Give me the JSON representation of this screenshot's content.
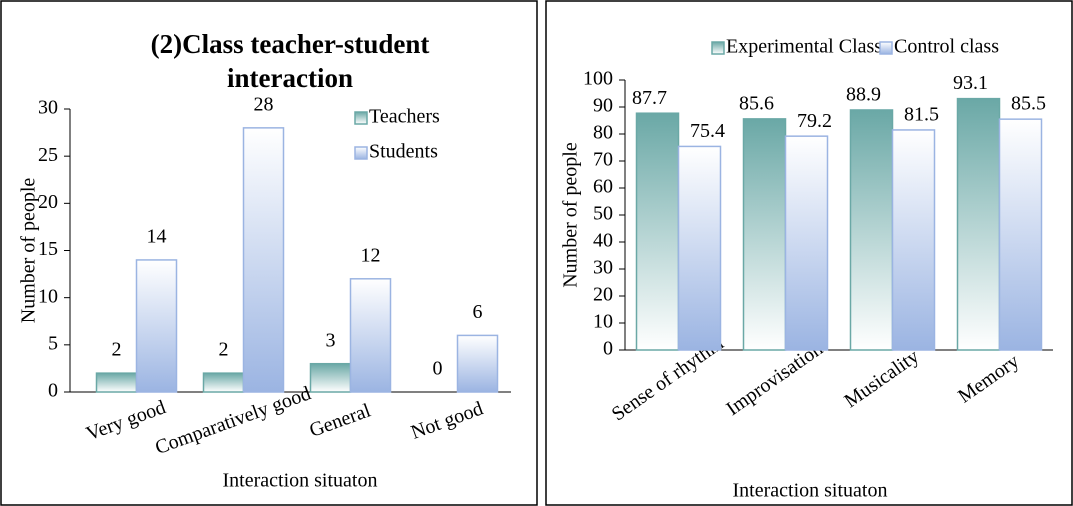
{
  "chart_data": [
    {
      "type": "bar",
      "title": "(2)Class teacher-student interaction",
      "y_label": "Number of people",
      "x_label": "Interaction situaton",
      "categories": [
        "Very good",
        "Comparatively good",
        "General",
        "Not good"
      ],
      "series": [
        {
          "name": "Teachers",
          "color": "#6aa8a6",
          "values": [
            2,
            2,
            3,
            0
          ]
        },
        {
          "name": "Students",
          "color": "#9bb4e2",
          "values": [
            14,
            28,
            12,
            6
          ]
        }
      ],
      "ylim": [
        0,
        30
      ],
      "yticks": [
        0,
        5,
        10,
        15,
        20,
        25,
        30
      ],
      "legend": "upper right"
    },
    {
      "type": "bar",
      "y_label": "Number of people",
      "x_label": "Interaction situaton",
      "categories": [
        "Sense of rhythm",
        "Improvisation",
        "Musicality",
        "Memory"
      ],
      "series": [
        {
          "name": "Experimental Class",
          "color": "#6aa8a6",
          "values": [
            87.7,
            85.6,
            88.9,
            93.1
          ]
        },
        {
          "name": "Control class",
          "color": "#9bb4e2",
          "values": [
            75.4,
            79.2,
            81.5,
            85.5
          ]
        }
      ],
      "ylim": [
        0,
        100
      ],
      "yticks": [
        0,
        10,
        20,
        30,
        40,
        50,
        60,
        70,
        80,
        90,
        100
      ],
      "legend": "top"
    }
  ]
}
